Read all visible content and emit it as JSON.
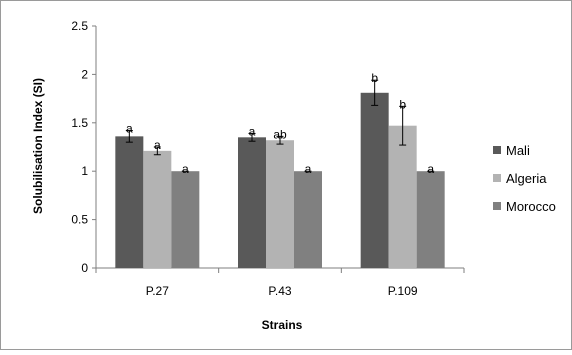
{
  "chart_data": {
    "type": "bar",
    "title": "",
    "xlabel": "Strains",
    "ylabel": "Solubilisation Index (SI)",
    "ylim": [
      0,
      2.5
    ],
    "yticks": [
      "0",
      "0.5",
      "1",
      "1.5",
      "2",
      "2.5"
    ],
    "categories": [
      "P.27",
      "P.43",
      "P.109"
    ],
    "grid": false,
    "legend_position": "right",
    "series": [
      {
        "name": "Mali",
        "color": "#595959",
        "values": [
          1.36,
          1.35,
          1.81
        ],
        "errors": [
          0.06,
          0.04,
          0.13
        ],
        "labels": [
          "a",
          "a",
          "b"
        ]
      },
      {
        "name": "Algeria",
        "color": "#b3b3b3",
        "values": [
          1.21,
          1.32,
          1.47
        ],
        "errors": [
          0.04,
          0.04,
          0.2
        ],
        "labels": [
          "a",
          "ab",
          "b"
        ]
      },
      {
        "name": "Morocco",
        "color": "#808080",
        "values": [
          1.0,
          1.0,
          1.0
        ],
        "errors": [
          0,
          0,
          0
        ],
        "labels": [
          "a",
          "a",
          "a"
        ]
      }
    ]
  }
}
